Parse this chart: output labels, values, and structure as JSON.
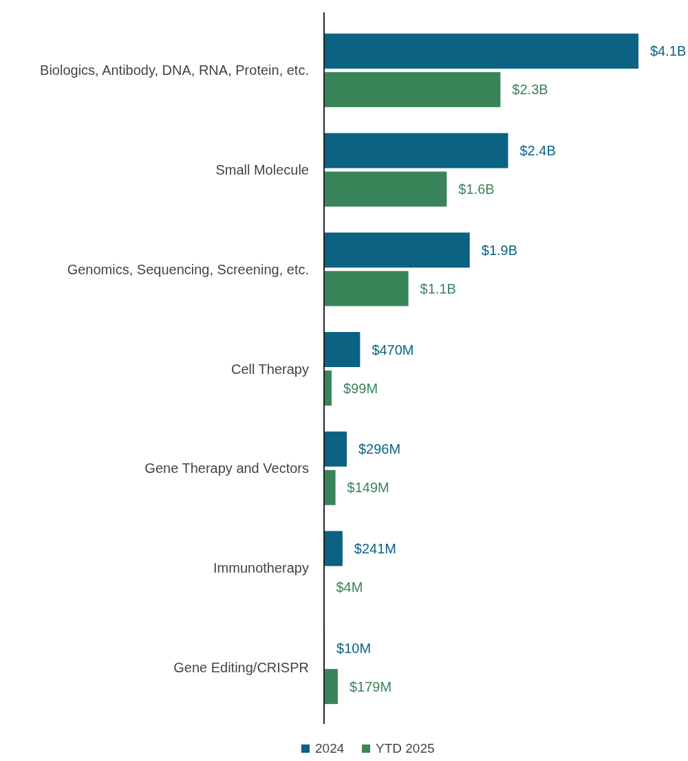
{
  "chart_data": {
    "type": "bar",
    "orientation": "horizontal",
    "categories": [
      "Biologics, Antibody, DNA, RNA, Protein, etc.",
      "Small Molecule",
      "Genomics, Sequencing, Screening, etc.",
      "Cell Therapy",
      "Gene Therapy and Vectors",
      "Immunotherapy",
      "Gene Editing/CRISPR"
    ],
    "series": [
      {
        "name": "2024",
        "color": "#0b6283",
        "values": [
          4100000000,
          2400000000,
          1900000000,
          470000000,
          296000000,
          241000000,
          10000000
        ],
        "value_labels": [
          "$4.1B",
          "$2.4B",
          "$1.9B",
          "$470M",
          "$296M",
          "$241M",
          "$10M"
        ]
      },
      {
        "name": "YTD 2025",
        "color": "#3a8459",
        "values": [
          2300000000,
          1600000000,
          1100000000,
          99000000,
          149000000,
          4000000,
          179000000
        ],
        "value_labels": [
          "$2.3B",
          "$1.6B",
          "$1.1B",
          "$99M",
          "$149M",
          "$4M",
          "$179M"
        ]
      }
    ],
    "legend": "bottom"
  }
}
